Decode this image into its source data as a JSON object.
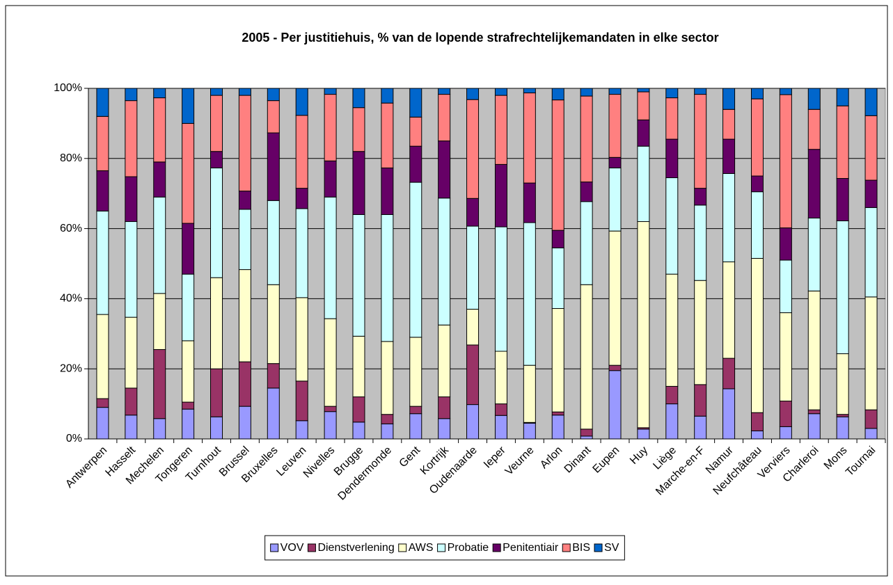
{
  "chart_data": {
    "type": "stacked_bar",
    "title": "2005 - Per justitiehuis, % van de lopende strafrechtelijkemandaten in elke sector",
    "categories": [
      "Antwerpen",
      "Hasselt",
      "Mechelen",
      "Tongeren",
      "Turnhout",
      "Brussel",
      "Bruxelles",
      "Leuven",
      "Nivelles",
      "Brugge",
      "Dendermonde",
      "Gent",
      "Kortrijk",
      "Oudenaarde",
      "Ieper",
      "Veurne",
      "Arlon",
      "Dinant",
      "Eupen",
      "Huy",
      "Liège",
      "Marche-en-F",
      "Namur",
      "Neufchâteau",
      "Verviers",
      "Charleroi",
      "Mons",
      "Tournai"
    ],
    "series": [
      {
        "name": "VOV",
        "color": "#9999ff",
        "values": [
          9,
          6.8,
          5.8,
          8.5,
          6.3,
          9.3,
          14.5,
          5.2,
          7.8,
          4.8,
          4.3,
          7.2,
          5.8,
          9.8,
          6.7,
          4.5,
          6.8,
          0.8,
          19.5,
          2.8,
          10,
          6.5,
          14.3,
          2.3,
          3.5,
          7.2,
          6.3,
          3
        ]
      },
      {
        "name": "Dienstverlening",
        "color": "#993366",
        "values": [
          2.5,
          7.7,
          19.7,
          2,
          13.7,
          12.7,
          7,
          11.3,
          1.5,
          7.2,
          2.7,
          2.1,
          6.2,
          17,
          3.3,
          0.2,
          0.9,
          2,
          1.5,
          0.4,
          5,
          9,
          8.7,
          5.2,
          7.3,
          1.1,
          0.7,
          5.3
        ]
      },
      {
        "name": "AWS",
        "color": "#ffffcc",
        "values": [
          24,
          20.2,
          16,
          17.5,
          26,
          26.3,
          22.5,
          23.8,
          25,
          17.3,
          20.8,
          19.7,
          20.5,
          10.2,
          15,
          16.3,
          29.5,
          41.2,
          38.3,
          58.8,
          32,
          29.7,
          27.5,
          44,
          25.2,
          33.9,
          17.3,
          32.2
        ]
      },
      {
        "name": "Probatie",
        "color": "#ccffff",
        "values": [
          29.5,
          27.3,
          27.5,
          19,
          31.3,
          17.2,
          24,
          25.4,
          34.7,
          34.7,
          36.2,
          44.2,
          36.2,
          23.7,
          35.5,
          40.7,
          17.3,
          23.7,
          18,
          21.5,
          27.5,
          21.5,
          25.2,
          19,
          15,
          20.8,
          37.9,
          25.5
        ]
      },
      {
        "name": "Penitentiair",
        "color": "#660066",
        "values": [
          11.5,
          12.8,
          10,
          14.5,
          4.7,
          5.2,
          19.3,
          5.8,
          10.3,
          18,
          13.3,
          10.3,
          16.3,
          7.9,
          17.8,
          11.3,
          5,
          5.6,
          3,
          7.5,
          11,
          4.8,
          9.8,
          4.5,
          9.2,
          19.6,
          12.1,
          7.8
        ]
      },
      {
        "name": "BIS",
        "color": "#ff8080",
        "values": [
          15.5,
          21.7,
          18.3,
          28.5,
          16,
          27.3,
          9.2,
          20.8,
          19,
          12.5,
          18.5,
          8.3,
          13.3,
          28.2,
          19.7,
          25.7,
          37.2,
          24.5,
          18,
          8,
          11.8,
          26.8,
          8.5,
          22,
          38,
          11.4,
          20.7,
          18.4
        ]
      },
      {
        "name": "SV",
        "color": "#0066cc",
        "values": [
          8,
          3.5,
          2.7,
          10,
          2,
          2,
          3.5,
          7.7,
          1.7,
          5.5,
          4.2,
          8.2,
          1.7,
          3.2,
          2,
          1.3,
          3.3,
          2.2,
          1.7,
          1,
          2.7,
          1.7,
          6,
          3,
          1.8,
          6,
          5,
          7.8
        ]
      }
    ],
    "ylim": [
      0,
      100
    ],
    "yticks": [
      {
        "value": 0,
        "label": "0%"
      },
      {
        "value": 20,
        "label": "20%"
      },
      {
        "value": 40,
        "label": "40%"
      },
      {
        "value": 60,
        "label": "60%"
      },
      {
        "value": 80,
        "label": "80%"
      },
      {
        "value": 100,
        "label": "100%"
      }
    ],
    "grid": true,
    "plot_background": "#c0c0c0",
    "legend": "bottom"
  }
}
